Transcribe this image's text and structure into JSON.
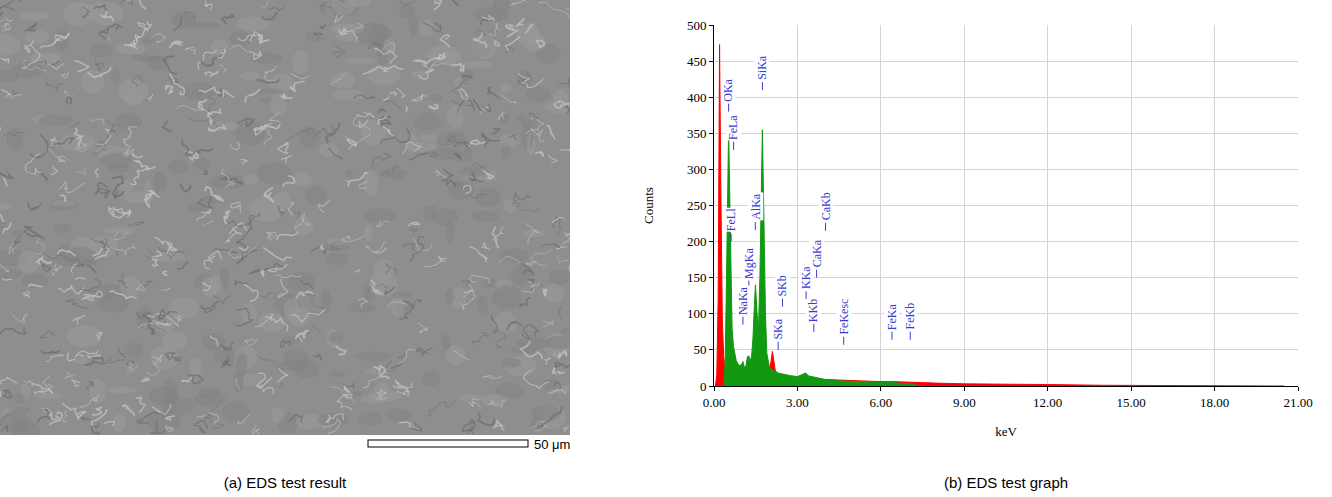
{
  "image_panel": {
    "caption": "(a) EDS test result",
    "scale_bar": "50 μm"
  },
  "chart_data": {
    "type": "area",
    "caption": "(b) EDS test graph",
    "x_label": "keV",
    "y_label": "Counts",
    "xlim": [
      0,
      21
    ],
    "xticks": [
      {
        "value": 0,
        "label": "0.00"
      },
      {
        "value": 3,
        "label": "3.00"
      },
      {
        "value": 6,
        "label": "6.00"
      },
      {
        "value": 9,
        "label": "9.00"
      },
      {
        "value": 12,
        "label": "12.00"
      },
      {
        "value": 15,
        "label": "15.00"
      },
      {
        "value": 18,
        "label": "18.00"
      },
      {
        "value": 21,
        "label": "21.00"
      }
    ],
    "ylim": [
      0,
      500
    ],
    "yticks": [
      0,
      50,
      100,
      150,
      200,
      250,
      300,
      350,
      400,
      450,
      500
    ],
    "grid": true,
    "series": [
      {
        "color": "#ff0000",
        "x": [
          0.05,
          0.1,
          0.15,
          0.2,
          0.25,
          0.3,
          0.35,
          0.4,
          0.45,
          0.5,
          0.6,
          0.7,
          0.8,
          0.9,
          1.0,
          1.2,
          1.4,
          1.6,
          1.8,
          1.9,
          2.0,
          2.05,
          2.1,
          2.15,
          2.2,
          2.3,
          2.5,
          2.8,
          3.0,
          3.3,
          3.5,
          4.0,
          4.5,
          5.0,
          5.5,
          6.0,
          6.5,
          7.0,
          7.5,
          8.0,
          9.0,
          10.0,
          11.0,
          12.0,
          14.0,
          16.0,
          18.0,
          20.0,
          20.5
        ],
        "values": [
          0,
          15,
          120,
          473,
          260,
          90,
          40,
          25,
          20,
          20,
          18,
          15,
          14,
          14,
          14,
          14,
          14,
          14,
          14,
          14,
          20,
          38,
          48,
          35,
          22,
          16,
          14,
          12,
          11,
          10,
          10,
          9,
          8,
          7,
          7,
          6,
          6,
          5,
          4,
          4,
          3,
          3,
          2,
          2,
          1,
          1,
          1,
          1,
          0
        ]
      },
      {
        "color": "#119911",
        "x": [
          0.35,
          0.4,
          0.45,
          0.5,
          0.525,
          0.55,
          0.6,
          0.65,
          0.7,
          0.8,
          0.9,
          1.0,
          1.04,
          1.1,
          1.15,
          1.2,
          1.25,
          1.3,
          1.35,
          1.4,
          1.45,
          1.49,
          1.55,
          1.6,
          1.65,
          1.7,
          1.74,
          1.8,
          1.85,
          1.9,
          2.0,
          2.3,
          2.5,
          2.8,
          3.0,
          3.3,
          3.4,
          3.6,
          3.7,
          4.0,
          4.5,
          5.0,
          6.0,
          6.4,
          6.6,
          7.0,
          7.5
        ],
        "values": [
          0,
          30,
          150,
          330,
          355,
          300,
          160,
          80,
          55,
          35,
          28,
          30,
          34,
          25,
          28,
          40,
          42,
          35,
          40,
          65,
          110,
          140,
          100,
          80,
          150,
          300,
          355,
          220,
          100,
          45,
          25,
          18,
          16,
          14,
          13,
          18,
          14,
          12,
          11,
          9,
          7,
          6,
          5,
          6,
          4,
          3,
          0
        ]
      }
    ],
    "annotations": [
      {
        "text": "OKa",
        "x": 0.525,
        "y": 380
      },
      {
        "text": "FeLl",
        "x": 0.615,
        "y": 200
      },
      {
        "text": "FeLa",
        "x": 0.705,
        "y": 327
      },
      {
        "text": "NaKa",
        "x": 1.041,
        "y": 85
      },
      {
        "text": "MgKa",
        "x": 1.254,
        "y": 135
      },
      {
        "text": "AlKa",
        "x": 1.486,
        "y": 216
      },
      {
        "text": "SiKa",
        "x": 1.74,
        "y": 410
      },
      {
        "text": "SKa",
        "x": 2.307,
        "y": 50
      },
      {
        "text": "SKb",
        "x": 2.464,
        "y": 110
      },
      {
        "text": "KKa",
        "x": 3.312,
        "y": 120
      },
      {
        "text": "KKb",
        "x": 3.59,
        "y": 75
      },
      {
        "text": "CaKa",
        "x": 3.69,
        "y": 150
      },
      {
        "text": "CaKb",
        "x": 4.012,
        "y": 215
      },
      {
        "text": "FeKesc",
        "x": 4.664,
        "y": 57
      },
      {
        "text": "FeKa",
        "x": 6.398,
        "y": 64
      },
      {
        "text": "FeKb",
        "x": 7.057,
        "y": 64
      }
    ]
  }
}
